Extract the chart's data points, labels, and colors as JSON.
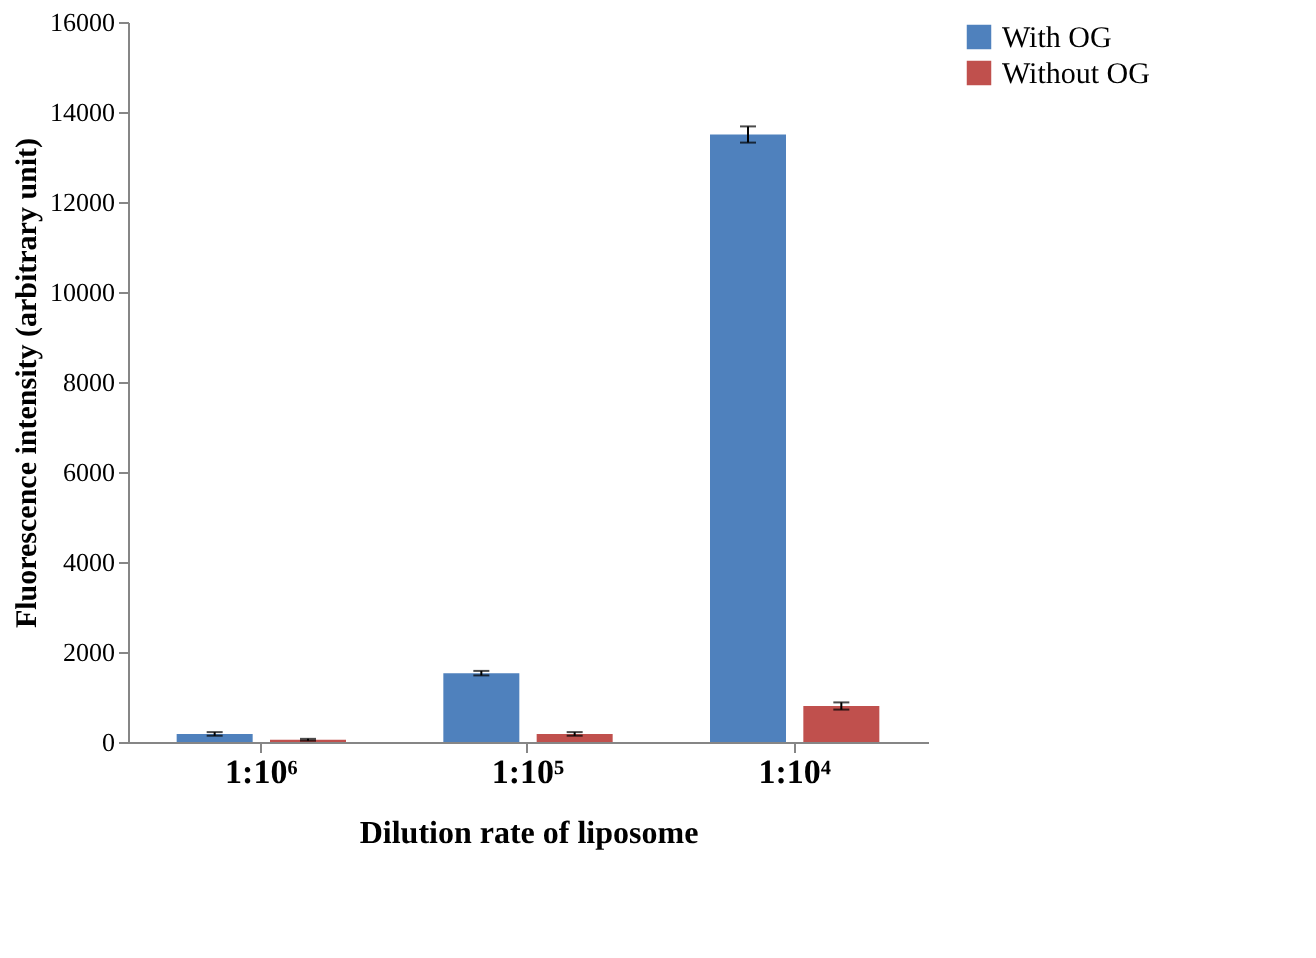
{
  "chart_data": {
    "type": "bar",
    "xlabel": "Dilution rate of liposome",
    "ylabel": "Fluorescence intensity (arbitrary unit)",
    "categories": [
      "1:10⁶",
      "1:10⁵",
      "1:10⁴"
    ],
    "series": [
      {
        "name": "With OG",
        "color": "#4f81bd",
        "values": [
          180,
          1530,
          13500
        ],
        "errors": [
          40,
          50,
          180
        ]
      },
      {
        "name": "Without OG",
        "color": "#c0504d",
        "values": [
          50,
          180,
          800
        ],
        "errors": [
          20,
          40,
          80
        ]
      }
    ],
    "ylim": [
      0,
      16000
    ],
    "yticks": [
      0,
      2000,
      4000,
      6000,
      8000,
      10000,
      12000,
      14000,
      16000
    ],
    "grid": false,
    "legend": "right"
  }
}
